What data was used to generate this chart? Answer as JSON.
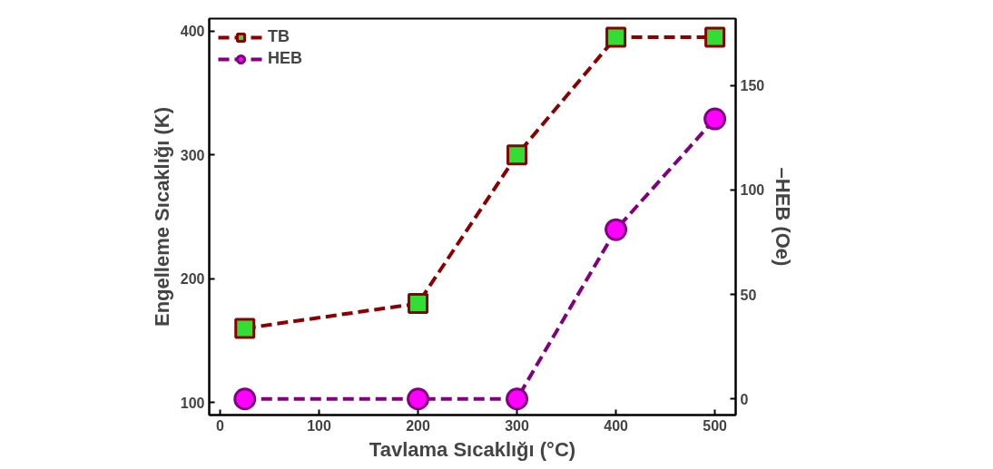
{
  "chart_data": {
    "type": "line",
    "xlabel": "Tavlama Sıcaklığı (°C)",
    "ylabel": "Engelleme Sıcaklığı (K)",
    "y2label": "–HEB (Oe)",
    "xlim": [
      -11,
      521
    ],
    "xticks": [
      0,
      100,
      200,
      300,
      400,
      500
    ],
    "ylim": [
      90,
      410
    ],
    "yticks": [
      100,
      200,
      300,
      400
    ],
    "y2lim": [
      -7.7,
      182
    ],
    "y2ticks": [
      0,
      50,
      100,
      150
    ],
    "grid": false,
    "legend": "top left",
    "line_style": "dashed",
    "series": [
      {
        "name": "TB",
        "color": "#8b0000",
        "marker": "square",
        "x": [
          25,
          200,
          300,
          400,
          500
        ],
        "values": [
          160,
          180,
          300,
          395,
          395
        ]
      },
      {
        "name": "HEB",
        "color": "#800080",
        "marker": "circle",
        "axis": "y2",
        "x": [
          25,
          200,
          300,
          400,
          500
        ],
        "values": [
          0,
          0,
          0,
          81,
          134
        ]
      }
    ]
  }
}
